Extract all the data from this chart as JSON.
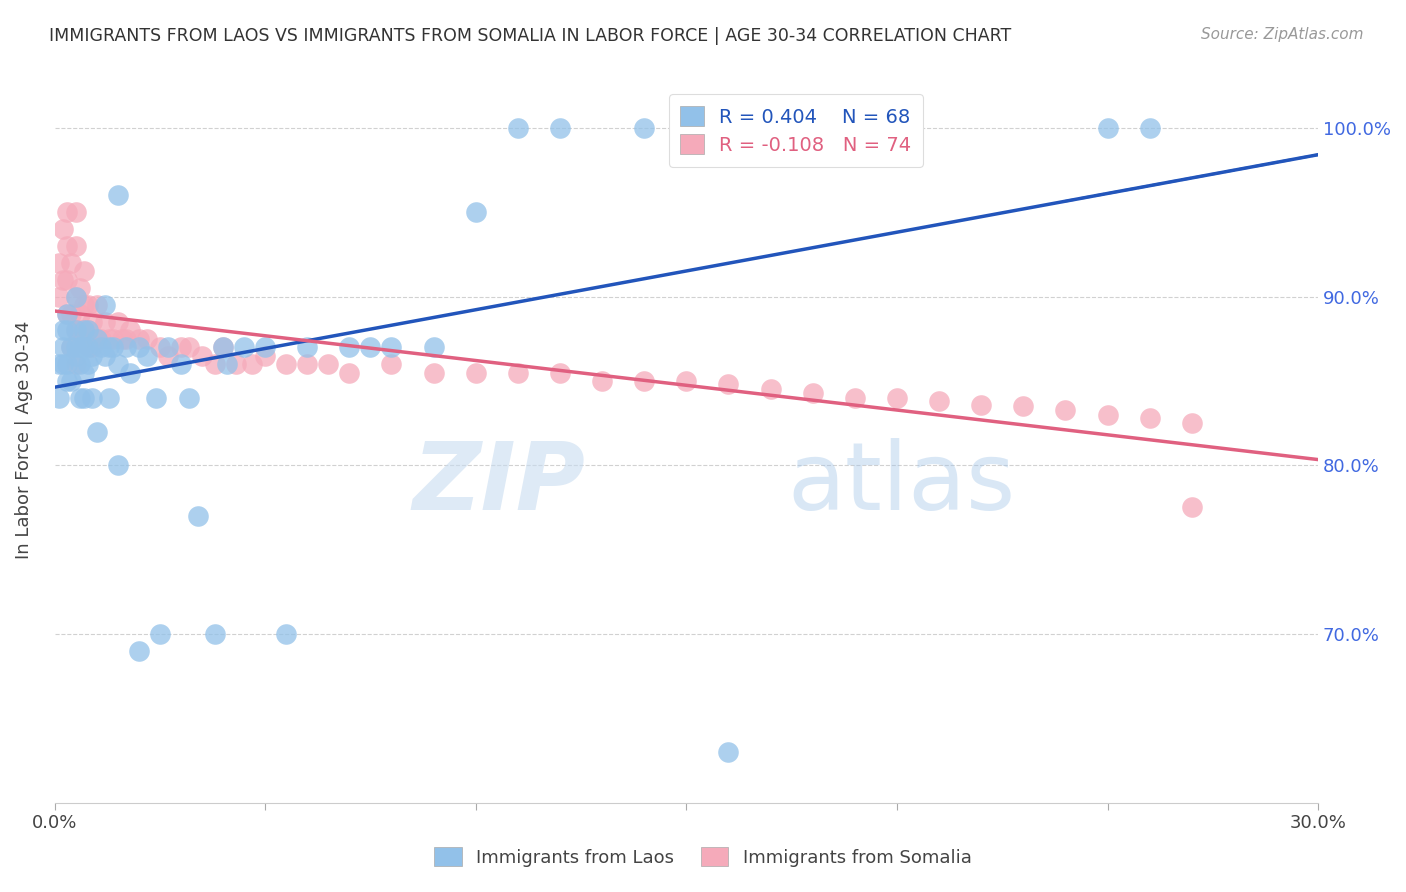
{
  "title": "IMMIGRANTS FROM LAOS VS IMMIGRANTS FROM SOMALIA IN LABOR FORCE | AGE 30-34 CORRELATION CHART",
  "source": "Source: ZipAtlas.com",
  "ylabel": "In Labor Force | Age 30-34",
  "x_min": 0.0,
  "x_max": 0.3,
  "y_min": 0.6,
  "y_max": 1.03,
  "y_ticks": [
    0.7,
    0.8,
    0.9,
    1.0
  ],
  "y_tick_labels": [
    "70.0%",
    "80.0%",
    "90.0%",
    "100.0%"
  ],
  "x_ticks": [
    0.0,
    0.05,
    0.1,
    0.15,
    0.2,
    0.25,
    0.3
  ],
  "x_tick_labels": [
    "0.0%",
    "",
    "",
    "",
    "",
    "",
    "30.0%"
  ],
  "laos_color": "#92C1E9",
  "somalia_color": "#F5AABA",
  "laos_line_color": "#2255BB",
  "somalia_line_color": "#E06080",
  "laos_R": 0.404,
  "laos_N": 68,
  "somalia_R": -0.108,
  "somalia_N": 74,
  "watermark_zip": "ZIP",
  "watermark_atlas": "atlas",
  "laos_x": [
    0.001,
    0.001,
    0.002,
    0.002,
    0.002,
    0.003,
    0.003,
    0.003,
    0.003,
    0.004,
    0.004,
    0.005,
    0.005,
    0.005,
    0.005,
    0.006,
    0.006,
    0.006,
    0.007,
    0.007,
    0.007,
    0.007,
    0.008,
    0.008,
    0.008,
    0.009,
    0.009,
    0.01,
    0.01,
    0.011,
    0.012,
    0.012,
    0.013,
    0.013,
    0.014,
    0.015,
    0.015,
    0.017,
    0.018,
    0.02,
    0.02,
    0.022,
    0.024,
    0.025,
    0.027,
    0.03,
    0.032,
    0.034,
    0.038,
    0.04,
    0.041,
    0.045,
    0.05,
    0.055,
    0.06,
    0.07,
    0.075,
    0.08,
    0.09,
    0.1,
    0.11,
    0.12,
    0.14,
    0.16,
    0.2,
    0.25,
    0.26,
    0.015
  ],
  "laos_y": [
    0.84,
    0.86,
    0.86,
    0.88,
    0.87,
    0.85,
    0.86,
    0.88,
    0.89,
    0.87,
    0.85,
    0.87,
    0.865,
    0.88,
    0.9,
    0.87,
    0.86,
    0.84,
    0.88,
    0.87,
    0.855,
    0.84,
    0.88,
    0.87,
    0.86,
    0.865,
    0.84,
    0.875,
    0.82,
    0.87,
    0.895,
    0.865,
    0.87,
    0.84,
    0.87,
    0.86,
    0.8,
    0.87,
    0.855,
    0.87,
    0.69,
    0.865,
    0.84,
    0.7,
    0.87,
    0.86,
    0.84,
    0.77,
    0.7,
    0.87,
    0.86,
    0.87,
    0.87,
    0.7,
    0.87,
    0.87,
    0.87,
    0.87,
    0.87,
    0.95,
    1.0,
    1.0,
    1.0,
    0.63,
    1.0,
    1.0,
    1.0,
    0.96
  ],
  "somalia_x": [
    0.001,
    0.001,
    0.002,
    0.002,
    0.003,
    0.003,
    0.003,
    0.004,
    0.004,
    0.005,
    0.005,
    0.005,
    0.006,
    0.006,
    0.007,
    0.007,
    0.007,
    0.008,
    0.008,
    0.009,
    0.01,
    0.01,
    0.011,
    0.012,
    0.013,
    0.014,
    0.015,
    0.016,
    0.017,
    0.018,
    0.02,
    0.022,
    0.025,
    0.027,
    0.03,
    0.032,
    0.035,
    0.038,
    0.04,
    0.043,
    0.047,
    0.05,
    0.055,
    0.06,
    0.065,
    0.07,
    0.08,
    0.09,
    0.1,
    0.11,
    0.12,
    0.13,
    0.14,
    0.15,
    0.16,
    0.17,
    0.18,
    0.19,
    0.2,
    0.21,
    0.22,
    0.23,
    0.24,
    0.25,
    0.26,
    0.27,
    0.005,
    0.003,
    0.004,
    0.005,
    0.006,
    0.008,
    0.27,
    0.009
  ],
  "somalia_y": [
    0.9,
    0.92,
    0.91,
    0.94,
    0.89,
    0.91,
    0.93,
    0.89,
    0.92,
    0.88,
    0.9,
    0.93,
    0.89,
    0.905,
    0.875,
    0.895,
    0.915,
    0.88,
    0.895,
    0.885,
    0.895,
    0.875,
    0.875,
    0.885,
    0.875,
    0.875,
    0.885,
    0.875,
    0.875,
    0.88,
    0.875,
    0.875,
    0.87,
    0.865,
    0.87,
    0.87,
    0.865,
    0.86,
    0.87,
    0.86,
    0.86,
    0.865,
    0.86,
    0.86,
    0.86,
    0.855,
    0.86,
    0.855,
    0.855,
    0.855,
    0.855,
    0.85,
    0.85,
    0.85,
    0.848,
    0.845,
    0.843,
    0.84,
    0.84,
    0.838,
    0.836,
    0.835,
    0.833,
    0.83,
    0.828,
    0.825,
    0.86,
    0.95,
    0.87,
    0.95,
    0.88,
    0.87,
    0.775,
    0.87
  ]
}
